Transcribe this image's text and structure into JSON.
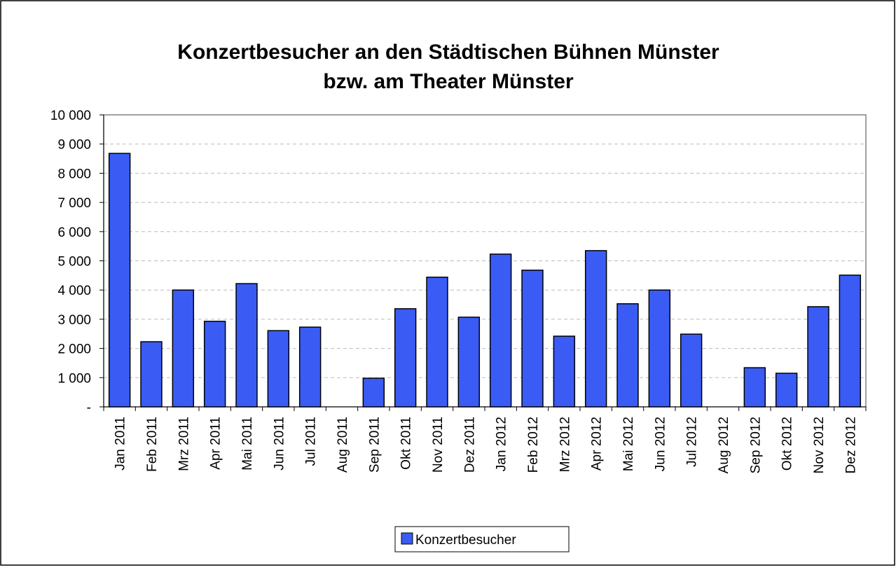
{
  "chart_data": {
    "type": "bar",
    "title": [
      "Konzertbesucher an den Städtischen Bühnen Münster",
      "bzw. am Theater Münster"
    ],
    "categories": [
      "Jan 2011",
      "Feb 2011",
      "Mrz 2011",
      "Apr 2011",
      "Mai 2011",
      "Jun 2011",
      "Jul 2011",
      "Aug 2011",
      "Sep 2011",
      "Okt 2011",
      "Nov 2011",
      "Dez 2011",
      "Jan 2012",
      "Feb 2012",
      "Mrz 2012",
      "Apr 2012",
      "Mai 2012",
      "Jun 2012",
      "Jul 2012",
      "Aug 2012",
      "Sep 2012",
      "Okt 2012",
      "Nov 2012",
      "Dez 2012"
    ],
    "series": [
      {
        "name": "Konzertbesucher",
        "color": "#3a5cf5",
        "values": [
          8680,
          2230,
          4000,
          2930,
          4220,
          2610,
          2730,
          0,
          980,
          3360,
          4440,
          3070,
          5230,
          4680,
          2420,
          5350,
          3530,
          4000,
          2490,
          0,
          1340,
          1150,
          3430,
          4510
        ]
      }
    ],
    "ylim": [
      0,
      10000
    ],
    "yticks": [
      {
        "value": 0,
        "label": "-"
      },
      {
        "value": 1000,
        "label": "1 000"
      },
      {
        "value": 2000,
        "label": "2 000"
      },
      {
        "value": 3000,
        "label": "3 000"
      },
      {
        "value": 4000,
        "label": "4 000"
      },
      {
        "value": 5000,
        "label": "5 000"
      },
      {
        "value": 6000,
        "label": "6 000"
      },
      {
        "value": 7000,
        "label": "7 000"
      },
      {
        "value": 8000,
        "label": "8 000"
      },
      {
        "value": 9000,
        "label": "9 000"
      },
      {
        "value": 10000,
        "label": "10 000"
      }
    ],
    "grid": true,
    "legend": "bottom"
  }
}
